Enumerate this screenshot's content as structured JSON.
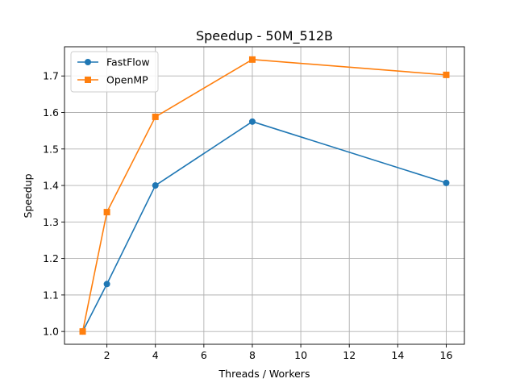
{
  "chart_data": {
    "type": "line",
    "title": "Speedup - 50M_512B",
    "xlabel": "Threads / Workers",
    "ylabel": "Speedup",
    "xlim": [
      0.25,
      16.75
    ],
    "ylim": [
      0.965,
      1.78
    ],
    "xticks": [
      2,
      4,
      6,
      8,
      10,
      12,
      14,
      16
    ],
    "yticks": [
      1.0,
      1.1,
      1.2,
      1.3,
      1.4,
      1.5,
      1.6,
      1.7
    ],
    "grid": true,
    "legend_position": "top-left",
    "x": [
      1,
      2,
      4,
      8,
      16
    ],
    "series": [
      {
        "name": "FastFlow",
        "marker": "circle",
        "color": "#1f77b4",
        "values": [
          1.0,
          1.13,
          1.4,
          1.575,
          1.407
        ]
      },
      {
        "name": "OpenMP",
        "marker": "square",
        "color": "#ff7f0e",
        "values": [
          1.0,
          1.327,
          1.588,
          1.745,
          1.703
        ]
      }
    ]
  }
}
